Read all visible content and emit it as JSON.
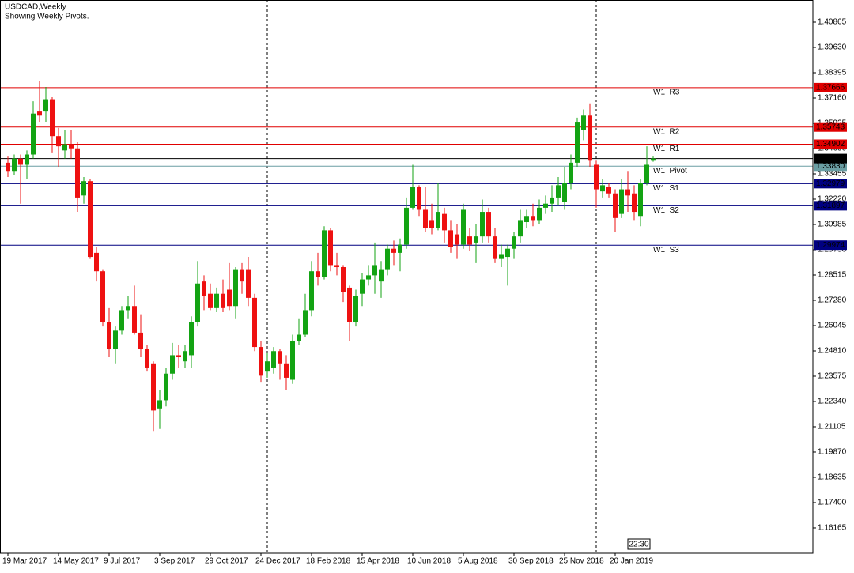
{
  "chart_data": {
    "type": "candlestick",
    "title": "USDCAD,Weekly",
    "subtitle": "Showing Weekly Pivots.",
    "time_label": "22:30",
    "up_color": "#13a313",
    "down_color": "#ee1111",
    "ylim": [
      1.14929,
      1.41946
    ],
    "yticks": [
      1.40865,
      {
        "value": 1.3963,
        "label": "1.39630"
      },
      1.38395,
      {
        "value": 1.3716,
        "label": "1.37160"
      },
      1.35925,
      {
        "value": 1.3469,
        "label": "1.34690"
      },
      1.33455,
      {
        "value": 1.3222,
        "label": "1.32220"
      },
      1.30985,
      {
        "value": 1.2975,
        "label": "1.29750"
      },
      1.28515,
      {
        "value": 1.2728,
        "label": "1.27280"
      },
      1.26045,
      {
        "value": 1.2481,
        "label": "1.24810"
      },
      1.23575,
      {
        "value": 1.2234,
        "label": "1.22340"
      },
      1.21105,
      {
        "value": 1.1987,
        "label": "1.19870"
      },
      1.18635,
      {
        "value": 1.174,
        "label": "1.17400"
      },
      1.16165
    ],
    "categories": [
      "19 Mar 2017",
      null,
      null,
      null,
      null,
      null,
      null,
      null,
      "14 May 2017",
      null,
      null,
      null,
      null,
      null,
      null,
      null,
      "9 Jul 2017",
      null,
      null,
      null,
      null,
      null,
      null,
      null,
      "3 Sep 2017",
      null,
      null,
      null,
      null,
      null,
      null,
      null,
      "29 Oct 2017",
      null,
      null,
      null,
      null,
      null,
      null,
      null,
      "24 Dec 2017",
      null,
      null,
      null,
      null,
      null,
      null,
      null,
      "18 Feb 2018",
      null,
      null,
      null,
      null,
      null,
      null,
      null,
      "15 Apr 2018",
      null,
      null,
      null,
      null,
      null,
      null,
      null,
      "10 Jun 2018",
      null,
      null,
      null,
      null,
      null,
      null,
      null,
      "5 Aug 2018",
      null,
      null,
      null,
      null,
      null,
      null,
      null,
      "30 Sep 2018",
      null,
      null,
      null,
      null,
      null,
      null,
      null,
      "25 Nov 2018",
      null,
      null,
      null,
      null,
      null,
      null,
      null,
      "20 Jan 2019",
      null,
      null,
      null,
      null,
      null,
      null
    ],
    "open": [
      1.34,
      1.336,
      1.342,
      1.339,
      1.344,
      1.365,
      1.365,
      1.371,
      1.353,
      1.346,
      1.349,
      1.347,
      1.324,
      1.331,
      1.296,
      1.287,
      1.262,
      1.249,
      1.258,
      1.268,
      1.27,
      1.257,
      1.249,
      1.242,
      1.22,
      1.224,
      1.237,
      1.246,
      1.243,
      1.246,
      1.262,
      1.282,
      1.276,
      1.269,
      1.276,
      1.278,
      1.27,
      1.288,
      1.288,
      1.274,
      1.25,
      1.238,
      1.24,
      1.248,
      1.242,
      1.234,
      1.253,
      1.256,
      1.268,
      1.287,
      1.284,
      1.307,
      1.29,
      1.289,
      1.279,
      1.262,
      1.276,
      1.283,
      1.285,
      1.282,
      1.288,
      1.298,
      1.296,
      1.3,
      1.318,
      1.328,
      1.317,
      1.312,
      1.308,
      1.315,
      1.307,
      1.305,
      1.3,
      1.304,
      1.301,
      1.304,
      1.316,
      1.304,
      1.293,
      1.294,
      1.298,
      1.304,
      1.311,
      1.314,
      1.312,
      1.318,
      1.32,
      1.323,
      1.321,
      1.33,
      1.34,
      1.356,
      1.363,
      1.339,
      1.326,
      1.328,
      1.325,
      1.315,
      1.327,
      1.325,
      1.314,
      1.33,
      1.341
    ],
    "high": [
      1.343,
      1.344,
      1.344,
      1.346,
      1.37,
      1.38,
      1.377,
      1.372,
      1.357,
      1.356,
      1.356,
      1.35,
      1.333,
      1.332,
      1.299,
      1.288,
      1.269,
      1.26,
      1.27,
      1.275,
      1.28,
      1.266,
      1.251,
      1.243,
      1.229,
      1.24,
      1.252,
      1.251,
      1.251,
      1.265,
      1.292,
      1.285,
      1.281,
      1.279,
      1.283,
      1.291,
      1.289,
      1.291,
      1.294,
      1.276,
      1.253,
      1.247,
      1.25,
      1.249,
      1.246,
      1.256,
      1.264,
      1.276,
      1.292,
      1.296,
      1.309,
      1.308,
      1.296,
      1.29,
      1.28,
      1.278,
      1.286,
      1.29,
      1.301,
      1.292,
      1.3,
      1.302,
      1.303,
      1.323,
      1.339,
      1.329,
      1.328,
      1.32,
      1.33,
      1.318,
      1.312,
      1.31,
      1.32,
      1.308,
      1.31,
      1.322,
      1.318,
      1.308,
      1.3,
      1.3,
      1.306,
      1.317,
      1.317,
      1.32,
      1.322,
      1.324,
      1.329,
      1.333,
      1.338,
      1.344,
      1.362,
      1.366,
      1.369,
      1.341,
      1.332,
      1.33,
      1.327,
      1.332,
      1.336,
      1.329,
      1.332,
      1.348,
      1.343
    ],
    "low": [
      1.333,
      1.334,
      1.32,
      1.332,
      1.342,
      1.36,
      1.36,
      1.345,
      1.338,
      1.342,
      1.342,
      1.316,
      1.32,
      1.293,
      1.282,
      1.26,
      1.245,
      1.242,
      1.256,
      1.264,
      1.256,
      1.245,
      1.238,
      1.209,
      1.21,
      1.221,
      1.234,
      1.24,
      1.24,
      1.24,
      1.26,
      1.268,
      1.268,
      1.267,
      1.267,
      1.268,
      1.264,
      1.276,
      1.27,
      1.248,
      1.233,
      1.235,
      1.237,
      1.234,
      1.229,
      1.232,
      1.251,
      1.255,
      1.265,
      1.28,
      1.283,
      1.287,
      1.285,
      1.272,
      1.253,
      1.26,
      1.27,
      1.28,
      1.276,
      1.274,
      1.285,
      1.29,
      1.287,
      1.298,
      1.317,
      1.314,
      1.306,
      1.305,
      1.307,
      1.301,
      1.296,
      1.293,
      1.298,
      1.297,
      1.291,
      1.301,
      1.301,
      1.291,
      1.289,
      1.28,
      1.293,
      1.301,
      1.308,
      1.309,
      1.31,
      1.315,
      1.316,
      1.319,
      1.317,
      1.327,
      1.338,
      1.351,
      1.338,
      1.318,
      1.323,
      1.323,
      1.306,
      1.313,
      1.316,
      1.312,
      1.309,
      1.329,
      1.3405
    ],
    "close": [
      1.336,
      1.342,
      1.339,
      1.344,
      1.364,
      1.363,
      1.371,
      1.353,
      1.348,
      1.349,
      1.347,
      1.323,
      1.331,
      1.294,
      1.287,
      1.262,
      1.249,
      1.258,
      1.268,
      1.27,
      1.257,
      1.249,
      1.24,
      1.219,
      1.224,
      1.237,
      1.246,
      1.245,
      1.248,
      1.262,
      1.281,
      1.275,
      1.269,
      1.276,
      1.269,
      1.27,
      1.288,
      1.282,
      1.274,
      1.25,
      1.236,
      1.243,
      1.248,
      1.242,
      1.235,
      1.253,
      1.256,
      1.268,
      1.287,
      1.284,
      1.307,
      1.29,
      1.289,
      1.277,
      1.262,
      1.275,
      1.283,
      1.285,
      1.29,
      1.288,
      1.298,
      1.296,
      1.3,
      1.318,
      1.328,
      1.317,
      1.308,
      1.308,
      1.316,
      1.307,
      1.299,
      1.3,
      1.317,
      1.3,
      1.304,
      1.316,
      1.304,
      1.293,
      1.295,
      1.298,
      1.304,
      1.312,
      1.314,
      1.312,
      1.318,
      1.32,
      1.323,
      1.329,
      1.33,
      1.34,
      1.36,
      1.363,
      1.341,
      1.327,
      1.329,
      1.325,
      1.313,
      1.327,
      1.324,
      1.316,
      1.33,
      1.339,
      1.34204
    ],
    "levels": [
      {
        "name": "W1  R3",
        "value": 1.37666,
        "color": "#e00000"
      },
      {
        "name": "W1  R2",
        "value": 1.35743,
        "color": "#e00000"
      },
      {
        "name": "W1  R1",
        "value": 1.34902,
        "color": "#e00000"
      },
      {
        "name": "W1  Pivot",
        "value": 1.3383,
        "value_label": "1.33830",
        "color": "#6a9ea3"
      },
      {
        "name": "W1  S1",
        "value": 1.32979,
        "color": "#000080"
      },
      {
        "name": "W1  S2",
        "value": 1.31897,
        "color": "#000080"
      },
      {
        "name": "W1  S3",
        "value": 1.29974,
        "color": "#000080"
      }
    ]
  }
}
